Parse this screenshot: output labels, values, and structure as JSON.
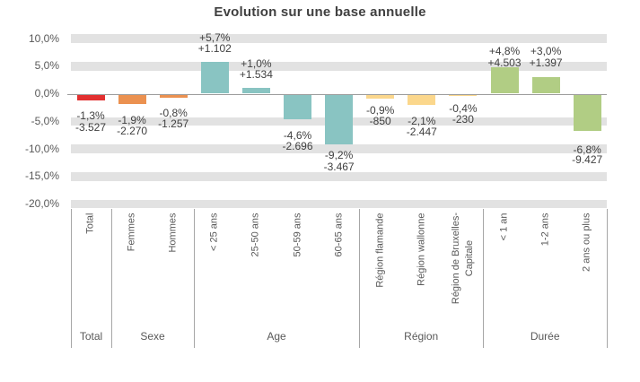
{
  "title": "Evolution sur une base annuelle",
  "y_axis": {
    "tick_labels": [
      "10,0%",
      "5,0%",
      "0,0%",
      "-5,0%",
      "-10,0%",
      "-15,0%",
      "-20,0%"
    ],
    "tick_values": [
      10,
      5,
      0,
      -5,
      -10,
      -15,
      -20
    ]
  },
  "colors": {
    "total": "#e23030",
    "sexe": "#eb9150",
    "age": "#89c4c2",
    "region": "#fbd78c",
    "duree": "#b1cd84",
    "grid_band": "#e2e2e2",
    "zero_line": "#9c9c9c",
    "divider": "#a6a6a6",
    "title_text": "#404040",
    "axis_text": "#595959",
    "data_label_text": "#3f3f3f"
  },
  "chart_data": {
    "type": "bar",
    "title": "Evolution sur une base annuelle",
    "xlabel": "",
    "ylabel": "",
    "ylim": [
      -20,
      10
    ],
    "y_tick_step": 5,
    "grid": "thick-horizontal-bands",
    "legend": "none",
    "categories": [
      "Total",
      "Femmes",
      "Hommes",
      "< 25 ans",
      "25-50 ans",
      "50-59 ans",
      "60-65 ans",
      "Région flamande",
      "Région wallonne",
      "Région de Bruxelles-\nCapitale",
      "< 1 an",
      "1-2 ans",
      "2 ans ou plus"
    ],
    "values_pct": [
      -1.3,
      -1.9,
      -0.8,
      5.7,
      1.0,
      -4.6,
      -9.2,
      -0.9,
      -2.1,
      -0.4,
      4.8,
      3.0,
      -6.8
    ],
    "values_abs": [
      -3527,
      -2270,
      -1257,
      1102,
      1534,
      -2696,
      -3467,
      -850,
      -2447,
      -230,
      4503,
      1397,
      -9427
    ],
    "labels_pct": [
      "-1,3%",
      "-1,9%",
      "-0,8%",
      "+5,7%",
      "+1,0%",
      "-4,6%",
      "-9,2%",
      "-0,9%",
      "-2,1%",
      "-0,4%",
      "+4,8%",
      "+3,0%",
      "-6,8%"
    ],
    "labels_abs": [
      "-3.527",
      "-2.270",
      "-1.257",
      "+1.102",
      "+1.534",
      "-2.696",
      "-3.467",
      "-850",
      "-2.447",
      "-230",
      "+4.503",
      "+1.397",
      "-9.427"
    ],
    "groups": [
      {
        "name": "Total",
        "indices": [
          0
        ],
        "color_key": "total"
      },
      {
        "name": "Sexe",
        "indices": [
          1,
          2
        ],
        "color_key": "sexe"
      },
      {
        "name": "Age",
        "indices": [
          3,
          4,
          5,
          6
        ],
        "color_key": "age"
      },
      {
        "name": "Région",
        "indices": [
          7,
          8,
          9
        ],
        "color_key": "region"
      },
      {
        "name": "Durée",
        "indices": [
          10,
          11,
          12
        ],
        "color_key": "duree"
      }
    ]
  }
}
